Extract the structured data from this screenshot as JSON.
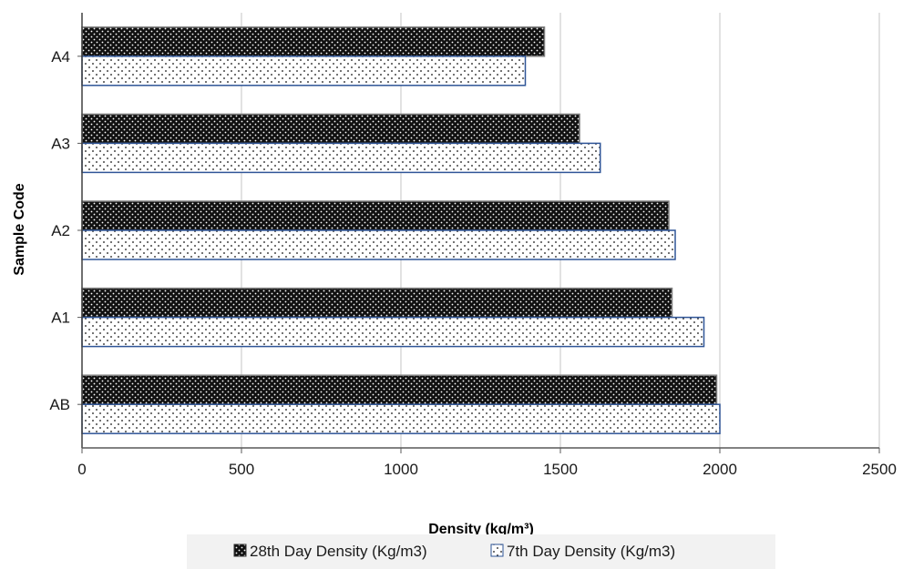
{
  "chart_data": {
    "type": "bar",
    "orientation": "horizontal",
    "categories": [
      "AB",
      "A1",
      "A2",
      "A3",
      "A4"
    ],
    "series": [
      {
        "name": "28th Day Density (Kg/m3)",
        "values": [
          1990,
          1850,
          1840,
          1560,
          1450
        ],
        "color": "#111111",
        "pattern": "dense-white-dots-on-black"
      },
      {
        "name": "7th Day Density (Kg/m3)",
        "values": [
          2000,
          1950,
          1860,
          1625,
          1390
        ],
        "color": "#ffffff",
        "pattern": "black-dots-on-white",
        "border_color": "#2f5597"
      }
    ],
    "xlabel": "Density (kg/m³)",
    "ylabel": "Sample Code",
    "xlim": [
      0,
      2500
    ],
    "xticks": [
      0,
      500,
      1000,
      1500,
      2000,
      2500
    ],
    "grid": "vertical",
    "legend_position": "bottom"
  }
}
